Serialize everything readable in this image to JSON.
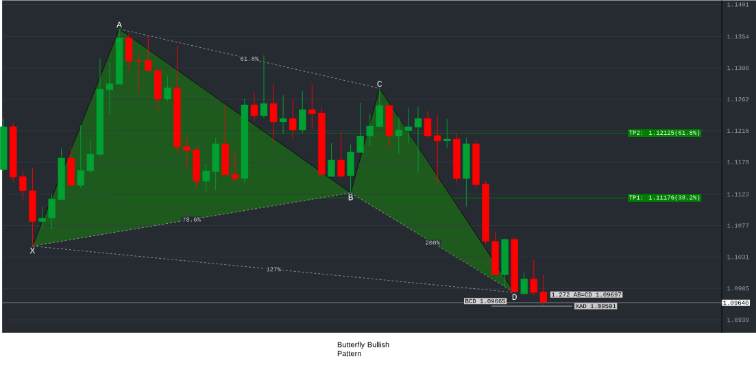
{
  "chart_data": {
    "type": "candlestick",
    "categories": [
      null,
      null,
      null,
      null,
      null,
      null,
      null,
      null,
      null,
      null,
      null,
      null,
      null,
      null,
      null,
      null,
      null,
      null,
      null,
      null,
      null,
      null,
      null,
      null,
      null,
      null,
      null,
      null,
      null,
      null,
      null,
      null,
      null,
      null,
      null,
      null,
      null,
      null,
      null,
      null,
      null,
      null,
      null,
      null,
      null,
      null,
      null,
      null,
      null,
      null,
      null,
      null,
      null,
      null,
      null,
      null,
      null,
      null,
      null,
      null,
      null,
      null,
      null,
      null,
      null,
      null,
      null,
      null,
      null,
      null,
      null,
      null,
      null,
      null,
      null
    ],
    "ohlc": [
      [
        1.1159,
        1.1234,
        1.1157,
        1.1222
      ],
      [
        1.1222,
        1.1227,
        1.1141,
        1.1148
      ],
      [
        1.1149,
        1.1157,
        1.1114,
        1.1128
      ],
      [
        1.1128,
        1.1162,
        1.1047,
        1.1083
      ],
      [
        1.1083,
        1.1105,
        1.1074,
        1.1088
      ],
      [
        1.1088,
        1.1123,
        1.1072,
        1.1116
      ],
      [
        1.1115,
        1.119,
        1.1114,
        1.1176
      ],
      [
        1.1176,
        1.1192,
        1.1136,
        1.1136
      ],
      [
        1.1136,
        1.1224,
        1.1132,
        1.1158
      ],
      [
        1.1157,
        1.1204,
        1.1154,
        1.1182
      ],
      [
        1.1181,
        1.1322,
        1.1179,
        1.1277
      ],
      [
        1.1276,
        1.1316,
        1.124,
        1.1285
      ],
      [
        1.1284,
        1.1365,
        1.1284,
        1.1352
      ],
      [
        1.1352,
        1.1359,
        1.1304,
        1.1318
      ],
      [
        1.1319,
        1.1331,
        1.1271,
        1.1318
      ],
      [
        1.1319,
        1.1355,
        1.1304,
        1.1304
      ],
      [
        1.1304,
        1.131,
        1.1245,
        1.1262
      ],
      [
        1.1262,
        1.1297,
        1.1259,
        1.1279
      ],
      [
        1.1279,
        1.134,
        1.1182,
        1.1192
      ],
      [
        1.1193,
        1.1208,
        1.1159,
        1.1187
      ],
      [
        1.1188,
        1.1194,
        1.1133,
        1.1142
      ],
      [
        1.1142,
        1.1166,
        1.1125,
        1.1157
      ],
      [
        1.1156,
        1.1205,
        1.1129,
        1.1197
      ],
      [
        1.1197,
        1.1253,
        1.1151,
        1.1151
      ],
      [
        1.1152,
        1.1183,
        1.114,
        1.1146
      ],
      [
        1.1146,
        1.1263,
        1.114,
        1.1254
      ],
      [
        1.1254,
        1.1272,
        1.123,
        1.1238
      ],
      [
        1.1238,
        1.1327,
        1.1234,
        1.1256
      ],
      [
        1.1256,
        1.1285,
        1.1199,
        1.1229
      ],
      [
        1.1229,
        1.1268,
        1.1211,
        1.1234
      ],
      [
        1.1234,
        1.1261,
        1.1204,
        1.1217
      ],
      [
        1.1217,
        1.1274,
        1.1213,
        1.1247
      ],
      [
        1.1247,
        1.1284,
        1.1219,
        1.1241
      ],
      [
        1.1242,
        1.125,
        1.1149,
        1.1152
      ],
      [
        1.1149,
        1.1198,
        1.1149,
        1.1173
      ],
      [
        1.1173,
        1.1214,
        1.1149,
        1.1149
      ],
      [
        1.115,
        1.1196,
        1.1125,
        1.1185
      ],
      [
        1.1184,
        1.1257,
        1.1184,
        1.1208
      ],
      [
        1.1208,
        1.1241,
        1.1194,
        1.1223
      ],
      [
        1.1222,
        1.1278,
        1.1221,
        1.1253
      ],
      [
        1.1253,
        1.1253,
        1.1191,
        1.1208
      ],
      [
        1.1208,
        1.1236,
        1.1182,
        1.1217
      ],
      [
        1.1216,
        1.125,
        1.1197,
        1.1222
      ],
      [
        1.1221,
        1.1251,
        1.1154,
        1.1234
      ],
      [
        1.1234,
        1.1245,
        1.1206,
        1.1208
      ],
      [
        1.1209,
        1.1239,
        1.1139,
        1.1201
      ],
      [
        1.1201,
        1.1233,
        1.119,
        1.1204
      ],
      [
        1.1204,
        1.1212,
        1.114,
        1.1146
      ],
      [
        1.1146,
        1.1206,
        1.1105,
        1.1197
      ],
      [
        1.1197,
        1.1203,
        1.1133,
        1.1137
      ],
      [
        1.1138,
        1.1143,
        1.105,
        1.1054
      ],
      [
        1.1054,
        1.1068,
        1.1005,
        1.1005
      ],
      [
        1.1005,
        1.1058,
        1.0987,
        1.1057
      ],
      [
        1.1057,
        1.1059,
        1.0979,
        1.098
      ],
      [
        1.0977,
        1.1009,
        1.0977,
        1.0999
      ],
      [
        1.0999,
        1.1027,
        1.0975,
        1.0979
      ],
      [
        1.098,
        1.1005,
        1.096,
        1.0965
      ],
      null,
      null,
      null,
      null,
      null,
      null,
      null,
      null,
      null,
      null,
      null,
      null,
      null,
      null,
      null,
      null,
      null,
      null
    ],
    "colors": [
      "#00a032",
      "#ff0000",
      "#ff0000",
      "#ff0000",
      "#00a032",
      "#00a032",
      "#00a032",
      "#ff0000",
      "#00a032",
      "#00a032",
      "#00a032",
      "#00a032",
      "#00a032",
      "#ff0000",
      "#ff0000",
      "#ff0000",
      "#ff0000",
      "#00a032",
      "#ff0000",
      "#ff0000",
      "#ff0000",
      "#00a032",
      "#00a032",
      "#ff0000",
      "#ff0000",
      "#00a032",
      "#ff0000",
      "#00a032",
      "#ff0000",
      "#00a032",
      "#ff0000",
      "#00a032",
      "#ff0000",
      "#ff0000",
      "#00a032",
      "#ff0000",
      "#00a032",
      "#00a032",
      "#00a032",
      "#00a032",
      "#ff0000",
      "#00a032",
      "#00a032",
      "#00a032",
      "#ff0000",
      "#ff0000",
      "#00a032",
      "#ff0000",
      "#00a032",
      "#ff0000",
      "#ff0000",
      "#ff0000",
      "#00a032",
      "#ff0000",
      "#00a032",
      "#ff0000",
      "#ff0000",
      null,
      null,
      null,
      null,
      null,
      null,
      null,
      null,
      null,
      null,
      null,
      null,
      null,
      null,
      null,
      null,
      null,
      null
    ],
    "series": [
      {
        "type": "line",
        "color": "#0a0a0a",
        "values": [
          null,
          null,
          null,
          1.1047,
          null,
          null,
          null,
          null,
          null,
          null,
          null,
          null,
          1.1365,
          null,
          null,
          null,
          null,
          null,
          null,
          null,
          null,
          null,
          null,
          null,
          null,
          null,
          null,
          null,
          null,
          null,
          null,
          null,
          null,
          null,
          null,
          null,
          1.1125,
          null,
          null,
          1.1278,
          null,
          null,
          null,
          null,
          null,
          null,
          null,
          null,
          null,
          null,
          null,
          null,
          null,
          1.0979,
          null,
          null,
          null,
          null,
          null,
          null,
          null,
          null,
          null,
          null,
          null,
          null,
          null,
          null,
          null,
          null,
          null,
          null,
          null,
          null,
          null
        ]
      },
      {
        "type": "line",
        "color": "#9a9a9a",
        "line_style": "dashed",
        "values": [
          null,
          null,
          null,
          null,
          null,
          null,
          null,
          null,
          null,
          null,
          null,
          null,
          1.1365,
          null,
          null,
          null,
          null,
          null,
          null,
          null,
          null,
          null,
          null,
          null,
          null,
          null,
          null,
          null,
          null,
          null,
          null,
          null,
          null,
          null,
          null,
          null,
          null,
          null,
          null,
          1.1278,
          null,
          null,
          null,
          null,
          null,
          null,
          null,
          null,
          null,
          null,
          null,
          null,
          null,
          null,
          null,
          null,
          null,
          null,
          null,
          null,
          null,
          null,
          null,
          null,
          null,
          null,
          null,
          null,
          null,
          null,
          null,
          null,
          null,
          null,
          null
        ]
      },
      {
        "type": "line",
        "color": "#9a9a9a",
        "line_style": "dashed",
        "values": [
          null,
          null,
          null,
          1.1047,
          null,
          null,
          null,
          null,
          null,
          null,
          null,
          null,
          null,
          null,
          null,
          null,
          null,
          null,
          null,
          null,
          null,
          null,
          null,
          null,
          null,
          null,
          null,
          null,
          null,
          null,
          null,
          null,
          null,
          null,
          null,
          null,
          1.1125,
          null,
          null,
          null,
          null,
          null,
          null,
          null,
          null,
          null,
          null,
          null,
          null,
          null,
          null,
          null,
          null,
          null,
          null,
          null,
          null,
          null,
          null,
          null,
          null,
          null,
          null,
          null,
          null,
          null,
          null,
          null,
          null,
          null,
          null,
          null,
          null,
          null,
          null
        ]
      },
      {
        "type": "line",
        "color": "#9a9a9a",
        "line_style": "dashed",
        "values": [
          null,
          null,
          null,
          null,
          null,
          null,
          null,
          null,
          null,
          null,
          null,
          null,
          null,
          null,
          null,
          null,
          null,
          null,
          null,
          null,
          null,
          null,
          null,
          null,
          null,
          null,
          null,
          null,
          null,
          null,
          null,
          null,
          null,
          null,
          null,
          null,
          1.1125,
          null,
          null,
          null,
          null,
          null,
          null,
          null,
          null,
          null,
          null,
          null,
          null,
          null,
          null,
          null,
          null,
          1.0979,
          null,
          null,
          null,
          null,
          null,
          null,
          null,
          null,
          null,
          null,
          null,
          null,
          null,
          null,
          null,
          null,
          null,
          null,
          null,
          null,
          null
        ]
      },
      {
        "type": "line",
        "color": "#9a9a9a",
        "line_style": "dashed",
        "values": [
          null,
          null,
          null,
          1.1047,
          null,
          null,
          null,
          null,
          null,
          null,
          null,
          null,
          null,
          null,
          null,
          null,
          null,
          null,
          null,
          null,
          null,
          null,
          null,
          null,
          null,
          null,
          null,
          null,
          null,
          null,
          null,
          null,
          null,
          null,
          null,
          null,
          null,
          null,
          null,
          null,
          null,
          null,
          null,
          null,
          null,
          null,
          null,
          null,
          null,
          null,
          null,
          null,
          null,
          1.0979,
          null,
          null,
          null,
          null,
          null,
          null,
          null,
          null,
          null,
          null,
          null,
          null,
          null,
          null,
          null,
          null,
          null,
          null,
          null,
          null,
          null
        ]
      }
    ],
    "ylim": [
      1.092,
      1.1407
    ],
    "yticks": [
      1.0939,
      1.0985,
      1.1031,
      1.1077,
      1.1123,
      {
        "value": 1.117,
        "label": "1.1170"
      },
      1.1216,
      1.1262,
      1.1308,
      1.1354,
      1.1401
    ],
    "grid": "y",
    "ref_lines": [
      {
        "axis": "y",
        "value": 1.12125,
        "label": "TP2: 1.12125(61.8%)",
        "color": "#008000"
      },
      {
        "axis": "y",
        "value": 1.11176,
        "label": "TP1: 1.11176(38.2%)",
        "color": "#008000"
      },
      {
        "axis": "y",
        "value": 1.09591,
        "label": "XAD 1.09591",
        "color": "#c8c8c8"
      },
      {
        "axis": "y",
        "value": 1.0964,
        "label": "1.09640",
        "color": "#a6a6a6"
      }
    ],
    "annotations": [
      "X",
      "A",
      "B",
      "C",
      "D",
      "61.8%",
      "78.6%",
      "200%",
      "127%",
      "Butterfly Bullish Pattern",
      {
        "text": "BCD 1.09665",
        "y": 1.09665
      },
      "1.272 AB=CD 1.09697"
    ]
  }
}
